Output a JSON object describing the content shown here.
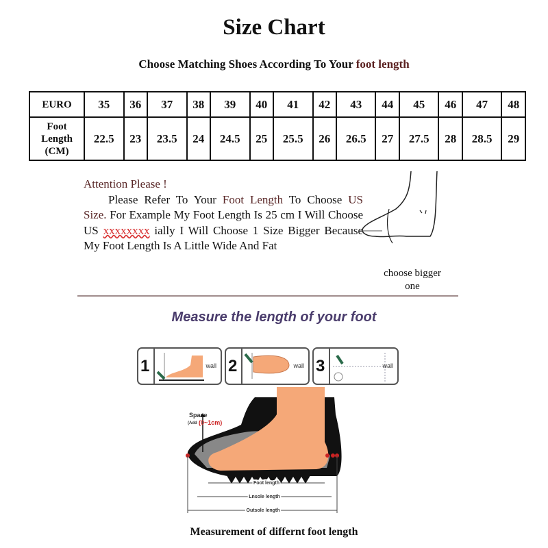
{
  "title": "Size Chart",
  "subtitle": {
    "prefix": "Choose Matching Shoes According To Your ",
    "highlight": "foot length"
  },
  "table": {
    "row_headers": {
      "euro": "EURO",
      "foot_length": "Foot Length (CM)"
    },
    "euro": [
      "35",
      "36",
      "37",
      "38",
      "39",
      "40",
      "41",
      "42",
      "43",
      "44",
      "45",
      "46",
      "47",
      "48"
    ],
    "foot_length_cm": [
      "22.5",
      "23",
      "23.5",
      "24",
      "24.5",
      "25",
      "25.5",
      "26",
      "26.5",
      "27",
      "27.5",
      "28",
      "28.5",
      "29"
    ]
  },
  "note": {
    "heading": "Attention Please !",
    "p1": "Please Refer To Your ",
    "p1_hl": "Foot Length",
    "p2": " To Choose ",
    "p2_hl": "US Size.",
    "p3": " For Example My Foot Length Is 25 cm I Will Choose US ",
    "p3_red": "xxxxxxxx",
    "p4": " ially I Will Choose 1 Size Bigger Because My Foot Length Is A Little Wide And Fat"
  },
  "choose_bigger": "choose bigger one",
  "measure_heading": "Measure the length of your foot",
  "steps": [
    {
      "number": "1",
      "label": "wall"
    },
    {
      "number": "2",
      "label": "wall"
    },
    {
      "number": "3",
      "label": "wall"
    }
  ],
  "diagram": {
    "space_label": "Space",
    "space_add": "(Add",
    "space_range": "(0~1cm)",
    "foot_length": "Foot length",
    "insole_length": "Lnsole length",
    "outsole_length": "Outsole length"
  },
  "caption": "Measurement of differnt foot length",
  "colors": {
    "highlight": "#5a2828",
    "red": "#d83030",
    "heading_purple": "#4a3c6c",
    "skin": "#f5a878"
  }
}
